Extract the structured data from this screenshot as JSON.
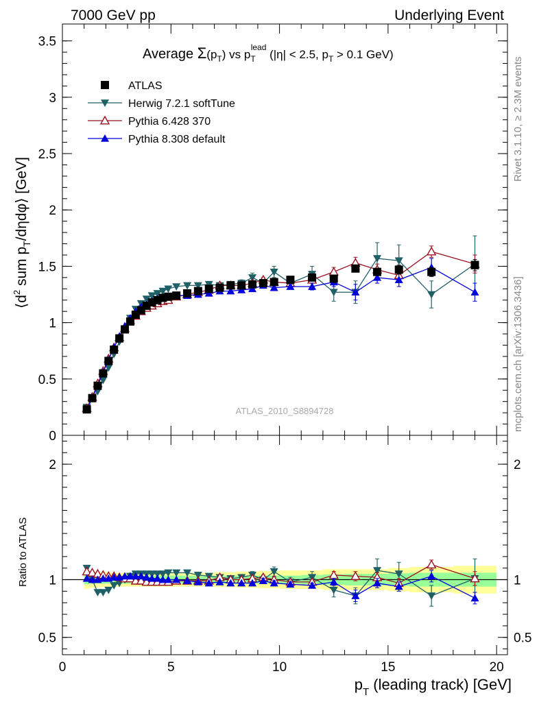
{
  "header": {
    "left": "7000 GeV pp",
    "right": "Underlying Event"
  },
  "side": {
    "rivet": "Rivet 3.1.10, ≥ 2.3M events",
    "mcplots": "mcplots.cern.ch [arXiv:1306.3436]"
  },
  "title": {
    "prefix": "Average ",
    "sigma": "Σ",
    "paren_open": "(p",
    "paren_sub": "T",
    "paren_close": ")",
    "vs": " vs p",
    "vs_sub": "T",
    "vs_sup": "lead",
    "rest": " (|η| < 2.5, p",
    "rest_sub": "T",
    "rest_end": " > 0.1 GeV)"
  },
  "watermark": "ATLAS_2010_S8894728",
  "axes": {
    "ylabel_top_parts": [
      "⟨d",
      "2",
      " sum p",
      "T",
      "/dηdφ⟩ [GeV]"
    ],
    "ylabel_bottom": "Ratio to ATLAS",
    "xlabel_parts": [
      "p",
      "T",
      " (leading track) [GeV]"
    ]
  },
  "colors": {
    "atlas": "#000000",
    "herwig": "#1f5f66",
    "pythia6": "#9b1020",
    "pythia8": "#0000dd",
    "band_inner": "#99ff99",
    "band_outer": "#ffff99"
  },
  "chart_data": [
    {
      "type": "scatter",
      "panel": "main",
      "xlim": [
        0,
        20.5
      ],
      "ylim": [
        0,
        3.65
      ],
      "xticks": [
        0,
        5,
        10,
        15,
        20
      ],
      "yticks": [
        0,
        0.5,
        1,
        1.5,
        2,
        2.5,
        3,
        3.5
      ],
      "ytick_labels": [
        "0",
        "0.5",
        "1",
        "1.5",
        "2",
        "2.5",
        "3",
        "3.5"
      ],
      "legend": [
        {
          "name": "ATLAS",
          "marker": "square"
        },
        {
          "name": "Herwig 7.2.1 softTune",
          "marker": "triangle-down"
        },
        {
          "name": "Pythia 6.428 370",
          "marker": "triangle-up-open"
        },
        {
          "name": "Pythia 8.308 default",
          "marker": "triangle-up"
        }
      ],
      "series": [
        {
          "name": "ATLAS",
          "x": [
            1.125,
            1.375,
            1.625,
            1.875,
            2.125,
            2.375,
            2.625,
            2.875,
            3.125,
            3.375,
            3.625,
            3.875,
            4.125,
            4.375,
            4.625,
            4.875,
            5.25,
            5.75,
            6.25,
            6.75,
            7.25,
            7.75,
            8.25,
            8.75,
            9.25,
            9.75,
            10.5,
            11.5,
            12.5,
            13.5,
            14.5,
            15.5,
            17.0,
            19.0
          ],
          "y": [
            0.23,
            0.33,
            0.44,
            0.55,
            0.66,
            0.76,
            0.86,
            0.94,
            1.01,
            1.07,
            1.11,
            1.15,
            1.18,
            1.2,
            1.22,
            1.23,
            1.24,
            1.26,
            1.28,
            1.3,
            1.31,
            1.33,
            1.33,
            1.34,
            1.35,
            1.36,
            1.38,
            1.4,
            1.39,
            1.48,
            1.45,
            1.47,
            1.45,
            1.51
          ],
          "err": [
            0.01,
            0.01,
            0.01,
            0.01,
            0.01,
            0.01,
            0.01,
            0.01,
            0.01,
            0.01,
            0.01,
            0.01,
            0.01,
            0.01,
            0.01,
            0.01,
            0.01,
            0.01,
            0.01,
            0.01,
            0.01,
            0.01,
            0.01,
            0.01,
            0.01,
            0.02,
            0.02,
            0.02,
            0.03,
            0.03,
            0.03,
            0.04,
            0.04,
            0.05
          ]
        },
        {
          "name": "Herwig 7.2.1 softTune",
          "x": [
            1.125,
            1.375,
            1.625,
            1.875,
            2.125,
            2.375,
            2.625,
            2.875,
            3.125,
            3.375,
            3.625,
            3.875,
            4.125,
            4.375,
            4.625,
            4.875,
            5.25,
            5.75,
            6.25,
            6.75,
            7.25,
            7.75,
            8.25,
            8.75,
            9.25,
            9.75,
            10.5,
            11.5,
            12.5,
            13.5,
            14.5,
            15.5,
            17.0,
            19.0
          ],
          "y": [
            0.25,
            0.33,
            0.39,
            0.49,
            0.6,
            0.72,
            0.83,
            0.94,
            1.04,
            1.12,
            1.17,
            1.21,
            1.24,
            1.26,
            1.28,
            1.3,
            1.32,
            1.33,
            1.33,
            1.34,
            1.33,
            1.34,
            1.35,
            1.4,
            1.35,
            1.45,
            1.35,
            1.43,
            1.27,
            1.27,
            1.57,
            1.55,
            1.25,
            1.52
          ],
          "err": [
            0.01,
            0.01,
            0.01,
            0.01,
            0.01,
            0.01,
            0.01,
            0.01,
            0.01,
            0.01,
            0.01,
            0.01,
            0.01,
            0.01,
            0.01,
            0.01,
            0.01,
            0.01,
            0.01,
            0.01,
            0.02,
            0.02,
            0.03,
            0.04,
            0.04,
            0.05,
            0.05,
            0.07,
            0.08,
            0.1,
            0.14,
            0.14,
            0.12,
            0.25
          ]
        },
        {
          "name": "Pythia 6.428 370",
          "x": [
            1.125,
            1.375,
            1.625,
            1.875,
            2.125,
            2.375,
            2.625,
            2.875,
            3.125,
            3.375,
            3.625,
            3.875,
            4.125,
            4.375,
            4.625,
            4.875,
            5.25,
            5.75,
            6.25,
            6.75,
            7.25,
            7.75,
            8.25,
            8.75,
            9.25,
            9.75,
            10.5,
            11.5,
            12.5,
            13.5,
            14.5,
            15.5,
            17.0,
            19.0
          ],
          "y": [
            0.24,
            0.34,
            0.46,
            0.57,
            0.68,
            0.78,
            0.87,
            0.95,
            1.02,
            1.06,
            1.1,
            1.13,
            1.15,
            1.17,
            1.19,
            1.2,
            1.23,
            1.25,
            1.27,
            1.29,
            1.33,
            1.33,
            1.33,
            1.35,
            1.38,
            1.36,
            1.35,
            1.38,
            1.45,
            1.53,
            1.47,
            1.42,
            1.63,
            1.52
          ],
          "err": [
            0.01,
            0.01,
            0.01,
            0.01,
            0.01,
            0.01,
            0.01,
            0.01,
            0.01,
            0.01,
            0.01,
            0.01,
            0.01,
            0.01,
            0.01,
            0.01,
            0.01,
            0.01,
            0.01,
            0.01,
            0.01,
            0.01,
            0.01,
            0.02,
            0.02,
            0.02,
            0.02,
            0.03,
            0.04,
            0.05,
            0.05,
            0.05,
            0.05,
            0.08
          ]
        },
        {
          "name": "Pythia 8.308 default",
          "x": [
            1.125,
            1.375,
            1.625,
            1.875,
            2.125,
            2.375,
            2.625,
            2.875,
            3.125,
            3.375,
            3.625,
            3.875,
            4.125,
            4.375,
            4.625,
            4.875,
            5.25,
            5.75,
            6.25,
            6.75,
            7.25,
            7.75,
            8.25,
            8.75,
            9.25,
            9.75,
            10.5,
            11.5,
            12.5,
            13.5,
            14.5,
            15.5,
            17.0,
            19.0
          ],
          "y": [
            0.23,
            0.33,
            0.44,
            0.56,
            0.67,
            0.78,
            0.88,
            0.97,
            1.04,
            1.1,
            1.14,
            1.16,
            1.19,
            1.21,
            1.22,
            1.23,
            1.24,
            1.24,
            1.25,
            1.26,
            1.28,
            1.28,
            1.29,
            1.3,
            1.33,
            1.31,
            1.32,
            1.32,
            1.36,
            1.27,
            1.4,
            1.38,
            1.49,
            1.27
          ],
          "err": [
            0.01,
            0.01,
            0.01,
            0.01,
            0.01,
            0.01,
            0.01,
            0.01,
            0.01,
            0.01,
            0.01,
            0.01,
            0.01,
            0.01,
            0.01,
            0.01,
            0.01,
            0.01,
            0.01,
            0.01,
            0.01,
            0.01,
            0.02,
            0.02,
            0.02,
            0.02,
            0.02,
            0.03,
            0.04,
            0.07,
            0.05,
            0.06,
            0.08,
            0.08
          ]
        }
      ]
    },
    {
      "type": "scatter",
      "panel": "ratio",
      "xlim": [
        0,
        20.5
      ],
      "ylim": [
        0.35,
        2.25
      ],
      "xticks": [
        0,
        5,
        10,
        15,
        20
      ],
      "xtick_labels": [
        "0",
        "5",
        "10",
        "15",
        "20"
      ],
      "yticks": [
        0.5,
        1,
        2
      ],
      "ytick_labels": [
        "0.5",
        "1",
        "2"
      ],
      "band": {
        "bin_edges": [
          1.0,
          1.25,
          1.5,
          1.75,
          2.0,
          2.25,
          2.5,
          2.75,
          3.0,
          3.25,
          3.5,
          3.75,
          4.0,
          4.25,
          4.5,
          4.75,
          5.0,
          5.5,
          6.0,
          6.5,
          7.0,
          7.5,
          8.0,
          8.5,
          9.0,
          9.5,
          10.0,
          11.0,
          12.0,
          13.0,
          14.0,
          15.0,
          16.0,
          18.0,
          20.0
        ],
        "inner": [
          0.04,
          0.035,
          0.035,
          0.035,
          0.035,
          0.035,
          0.035,
          0.035,
          0.035,
          0.035,
          0.035,
          0.035,
          0.035,
          0.035,
          0.035,
          0.035,
          0.035,
          0.035,
          0.035,
          0.035,
          0.035,
          0.035,
          0.035,
          0.035,
          0.035,
          0.035,
          0.035,
          0.04,
          0.045,
          0.05,
          0.05,
          0.055,
          0.06,
          0.06
        ],
        "outer": [
          0.08,
          0.07,
          0.07,
          0.065,
          0.065,
          0.06,
          0.06,
          0.06,
          0.06,
          0.06,
          0.06,
          0.06,
          0.06,
          0.06,
          0.06,
          0.06,
          0.06,
          0.06,
          0.06,
          0.06,
          0.065,
          0.065,
          0.07,
          0.07,
          0.075,
          0.075,
          0.08,
          0.08,
          0.09,
          0.09,
          0.09,
          0.1,
          0.11,
          0.12
        ]
      },
      "series": [
        {
          "name": "Herwig 7.2.1 softTune",
          "x": [
            1.125,
            1.375,
            1.625,
            1.875,
            2.125,
            2.375,
            2.625,
            2.875,
            3.125,
            3.375,
            3.625,
            3.875,
            4.125,
            4.375,
            4.625,
            4.875,
            5.25,
            5.75,
            6.25,
            6.75,
            7.25,
            7.75,
            8.25,
            8.75,
            9.25,
            9.75,
            10.5,
            11.5,
            12.5,
            13.5,
            14.5,
            15.5,
            17.0,
            19.0
          ],
          "y": [
            1.1,
            1.0,
            0.89,
            0.89,
            0.91,
            0.95,
            0.97,
            1.0,
            1.03,
            1.05,
            1.05,
            1.05,
            1.05,
            1.05,
            1.05,
            1.06,
            1.06,
            1.06,
            1.04,
            1.03,
            1.02,
            1.01,
            1.02,
            1.04,
            1.0,
            1.07,
            0.98,
            1.02,
            0.91,
            0.86,
            1.08,
            1.05,
            0.86,
            1.01
          ],
          "err": [
            0.01,
            0.01,
            0.01,
            0.01,
            0.01,
            0.01,
            0.01,
            0.01,
            0.01,
            0.01,
            0.01,
            0.01,
            0.01,
            0.01,
            0.01,
            0.01,
            0.01,
            0.01,
            0.01,
            0.01,
            0.02,
            0.02,
            0.02,
            0.03,
            0.03,
            0.04,
            0.04,
            0.05,
            0.06,
            0.07,
            0.1,
            0.1,
            0.09,
            0.17
          ]
        },
        {
          "name": "Pythia 6.428 370",
          "x": [
            1.125,
            1.375,
            1.625,
            1.875,
            2.125,
            2.375,
            2.625,
            2.875,
            3.125,
            3.375,
            3.625,
            3.875,
            4.125,
            4.375,
            4.625,
            4.875,
            5.25,
            5.75,
            6.25,
            6.75,
            7.25,
            7.75,
            8.25,
            8.75,
            9.25,
            9.75,
            10.5,
            11.5,
            12.5,
            13.5,
            14.5,
            15.5,
            17.0,
            19.0
          ],
          "y": [
            1.07,
            1.06,
            1.05,
            1.04,
            1.03,
            1.03,
            1.02,
            1.01,
            1.01,
            0.99,
            0.99,
            0.98,
            0.98,
            0.98,
            0.98,
            0.98,
            0.99,
            0.99,
            0.99,
            0.99,
            1.02,
            1.0,
            1.0,
            1.01,
            1.02,
            1.0,
            0.98,
            0.98,
            1.04,
            1.03,
            1.02,
            0.97,
            1.13,
            1.01
          ],
          "err": [
            0.01,
            0.01,
            0.01,
            0.01,
            0.01,
            0.01,
            0.01,
            0.01,
            0.01,
            0.01,
            0.01,
            0.01,
            0.01,
            0.01,
            0.01,
            0.01,
            0.01,
            0.01,
            0.01,
            0.01,
            0.01,
            0.01,
            0.01,
            0.01,
            0.02,
            0.02,
            0.02,
            0.02,
            0.03,
            0.04,
            0.04,
            0.04,
            0.04,
            0.06
          ]
        },
        {
          "name": "Pythia 8.308 default",
          "x": [
            1.125,
            1.375,
            1.625,
            1.875,
            2.125,
            2.375,
            2.625,
            2.875,
            3.125,
            3.375,
            3.625,
            3.875,
            4.125,
            4.375,
            4.625,
            4.875,
            5.25,
            5.75,
            6.25,
            6.75,
            7.25,
            7.75,
            8.25,
            8.75,
            9.25,
            9.75,
            10.5,
            11.5,
            12.5,
            13.5,
            14.5,
            15.5,
            17.0,
            19.0
          ],
          "y": [
            1.01,
            1.0,
            1.0,
            1.01,
            1.01,
            1.02,
            1.02,
            1.03,
            1.03,
            1.03,
            1.03,
            1.02,
            1.01,
            1.01,
            1.0,
            1.0,
            1.0,
            0.99,
            0.98,
            0.97,
            0.98,
            0.97,
            0.97,
            0.97,
            0.99,
            0.97,
            0.96,
            0.95,
            0.98,
            0.86,
            0.97,
            0.94,
            1.03,
            0.84
          ],
          "err": [
            0.01,
            0.01,
            0.01,
            0.01,
            0.01,
            0.01,
            0.01,
            0.01,
            0.01,
            0.01,
            0.01,
            0.01,
            0.01,
            0.01,
            0.01,
            0.01,
            0.01,
            0.01,
            0.01,
            0.01,
            0.01,
            0.01,
            0.01,
            0.01,
            0.02,
            0.02,
            0.02,
            0.02,
            0.03,
            0.05,
            0.04,
            0.04,
            0.05,
            0.05
          ]
        }
      ]
    }
  ]
}
